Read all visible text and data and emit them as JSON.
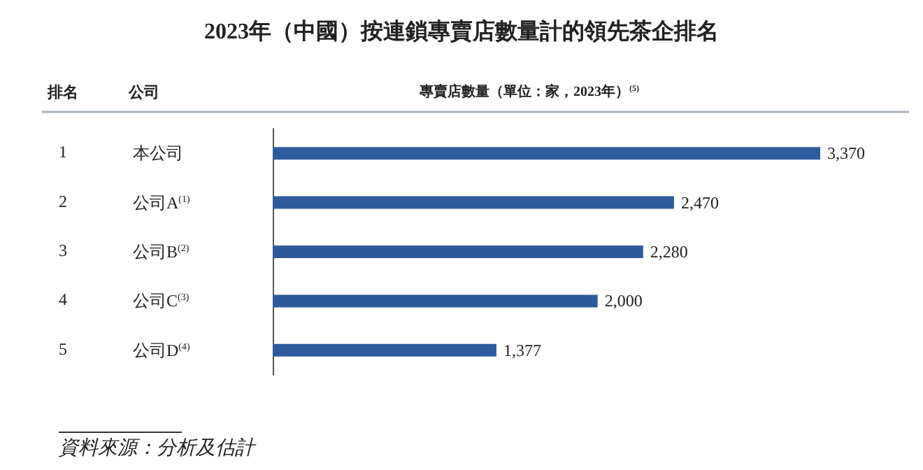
{
  "chart_data": {
    "type": "bar",
    "orientation": "horizontal",
    "title": "2023年（中國）按連鎖專賣店數量計的領先茶企排名",
    "xlabel": "專賣店數量（單位：家，2023年）$^{(5)}$",
    "categories": [
      "本公司",
      "公司A$^{(1)}$",
      "公司B$^{(2)}$",
      "公司C$^{(3)}$",
      "公司D$^{(4)}$"
    ],
    "values": [
      3370,
      2470,
      2280,
      2000,
      1377
    ],
    "value_labels": [
      "3,370",
      "2,470",
      "2,280",
      "2,000",
      "1,377"
    ],
    "color": "#2e5b9e",
    "annotations": [
      "排名",
      "公司",
      "1",
      "2",
      "3",
      "4",
      "5",
      "資料來源：分析及估計"
    ]
  }
}
